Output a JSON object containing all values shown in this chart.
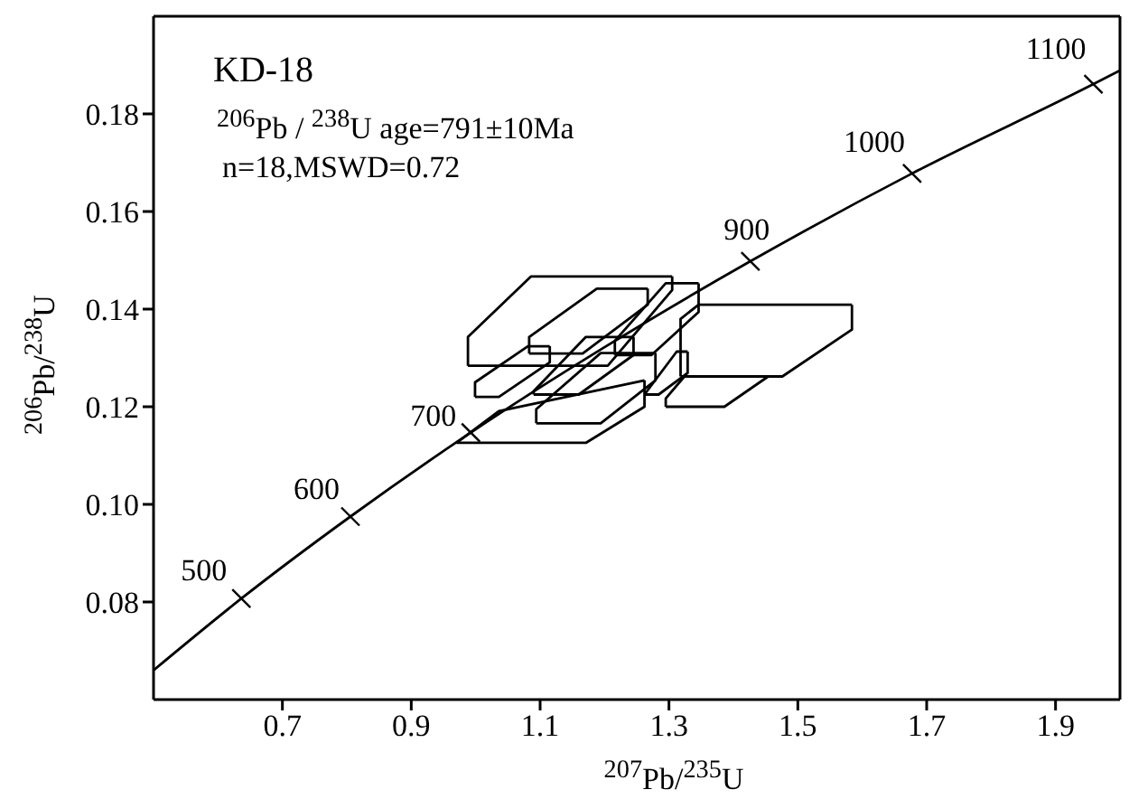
{
  "chart_data": {
    "type": "line",
    "title": "KD-18",
    "subtitle": "$^{206}$Pb / $^{238}$U age=791±10Ma",
    "xlabel": "$^{207}$Pb/$^{235}$U",
    "ylabel": "$^{206}$Pb/$^{238}$U",
    "xlim": [
      0.5,
      2.0
    ],
    "xticks": [
      0.7,
      0.9,
      1.1,
      1.3,
      1.5,
      1.7,
      1.9
    ],
    "ylim": [
      0.06,
      0.2
    ],
    "yticks": [
      {
        "value": 0.08,
        "label": "0.08"
      },
      {
        "value": 0.1,
        "label": "0.10"
      },
      {
        "value": 0.12,
        "label": "0.12"
      },
      {
        "value": 0.14,
        "label": "0.14"
      },
      {
        "value": 0.16,
        "label": "0.16"
      },
      {
        "value": 0.18,
        "label": "0.18"
      }
    ],
    "annotations": [
      "n=18,MSWD=0.72",
      {
        "text": "500",
        "x": 0.6363,
        "y": 0.0807
      },
      {
        "text": "600",
        "x": 0.8056,
        "y": 0.0975
      },
      {
        "text": "700",
        "x": 0.9924,
        "y": 0.1147
      },
      {
        "text": "900",
        "x": 1.4264,
        "y": 0.1498
      },
      {
        "text": "1000",
        "x": 1.6774,
        "y": 0.1678
      },
      {
        "text": "1100",
        "x": 1.9588,
        "y": 0.1861
      }
    ],
    "series": [
      {
        "color": "#000000",
        "x": [
          0.5,
          0.6363,
          0.8056,
          0.9924,
          1.1988,
          1.4264,
          1.6774,
          1.9588,
          2.0
        ],
        "values": [
          0.066,
          0.0807,
          0.0975,
          0.1147,
          0.1321,
          0.1498,
          0.1678,
          0.1861,
          0.1889
        ]
      },
      {
        "color": "#000000",
        "x": [
          0.988,
          0.988,
          1.086,
          1.305
        ],
        "values": [
          0.1284,
          0.1343,
          0.1467,
          0.1467
        ]
      },
      {
        "color": "#000000",
        "x": [
          0.988,
          1.205,
          1.305,
          1.305
        ],
        "values": [
          0.1284,
          0.1284,
          0.1439,
          0.1467
        ]
      },
      {
        "color": "#000000",
        "x": [
          1.083,
          1.083,
          1.188,
          1.267
        ],
        "values": [
          0.1309,
          0.1343,
          0.1442,
          0.1442
        ]
      },
      {
        "color": "#000000",
        "x": [
          1.083,
          1.166,
          1.267,
          1.267
        ],
        "values": [
          0.1309,
          0.1309,
          0.1409,
          0.1442
        ]
      },
      {
        "color": "#000000",
        "x": [
          1.216,
          1.216,
          1.295,
          1.346
        ],
        "values": [
          0.1306,
          0.1335,
          0.1453,
          0.1453
        ]
      },
      {
        "color": "#000000",
        "x": [
          1.216,
          1.273,
          1.346,
          1.346
        ],
        "values": [
          0.1306,
          0.1306,
          0.1394,
          0.1453
        ]
      },
      {
        "color": "#000000",
        "x": [
          1.318,
          1.318,
          1.346,
          1.584
        ],
        "values": [
          0.1262,
          0.138,
          0.1409,
          0.1409
        ]
      },
      {
        "color": "#000000",
        "x": [
          1.318,
          1.476,
          1.584,
          1.584
        ],
        "values": [
          0.1262,
          0.1262,
          0.1358,
          0.1409
        ]
      },
      {
        "color": "#000000",
        "x": [
          1.295,
          1.295,
          1.324,
          1.454
        ],
        "values": [
          0.12,
          0.1217,
          0.1262,
          0.1262
        ]
      },
      {
        "color": "#000000",
        "x": [
          1.295,
          1.386,
          1.454
        ],
        "values": [
          0.12,
          0.12,
          0.1262
        ]
      },
      {
        "color": "#000000",
        "x": [
          1.094,
          1.094,
          1.194,
          1.279
        ],
        "values": [
          0.1166,
          0.1195,
          0.131,
          0.131
        ]
      },
      {
        "color": "#000000",
        "x": [
          1.094,
          1.194,
          1.279,
          1.279
        ],
        "values": [
          0.1166,
          0.1166,
          0.1254,
          0.131
        ]
      },
      {
        "color": "#000000",
        "x": [
          0.97,
          1.036,
          1.262
        ],
        "values": [
          0.1126,
          0.1191,
          0.1254
        ]
      },
      {
        "color": "#000000",
        "x": [
          0.97,
          1.171,
          1.262,
          1.262
        ],
        "values": [
          0.1126,
          0.1126,
          0.12,
          0.1254
        ]
      },
      {
        "color": "#000000",
        "x": [
          0.999,
          0.999,
          1.081,
          1.115
        ],
        "values": [
          0.122,
          0.125,
          0.1324,
          0.1324
        ]
      },
      {
        "color": "#000000",
        "x": [
          0.999,
          1.036,
          1.115,
          1.115
        ],
        "values": [
          0.122,
          0.122,
          0.1291,
          0.1324
        ]
      },
      {
        "color": "#000000",
        "x": [
          1.09,
          1.09,
          1.171,
          1.245
        ],
        "values": [
          0.1225,
          0.1232,
          0.1343,
          0.1343
        ]
      },
      {
        "color": "#000000",
        "x": [
          1.09,
          1.16,
          1.245,
          1.245
        ],
        "values": [
          0.1225,
          0.1225,
          0.1306,
          0.1343
        ]
      },
      {
        "color": "#000000",
        "x": [
          1.262,
          1.312,
          1.329
        ],
        "values": [
          0.1225,
          0.1313,
          0.1313
        ]
      },
      {
        "color": "#000000",
        "x": [
          1.262,
          1.284,
          1.329,
          1.329
        ],
        "values": [
          0.1225,
          0.1225,
          0.1269,
          0.1313
        ]
      }
    ]
  }
}
